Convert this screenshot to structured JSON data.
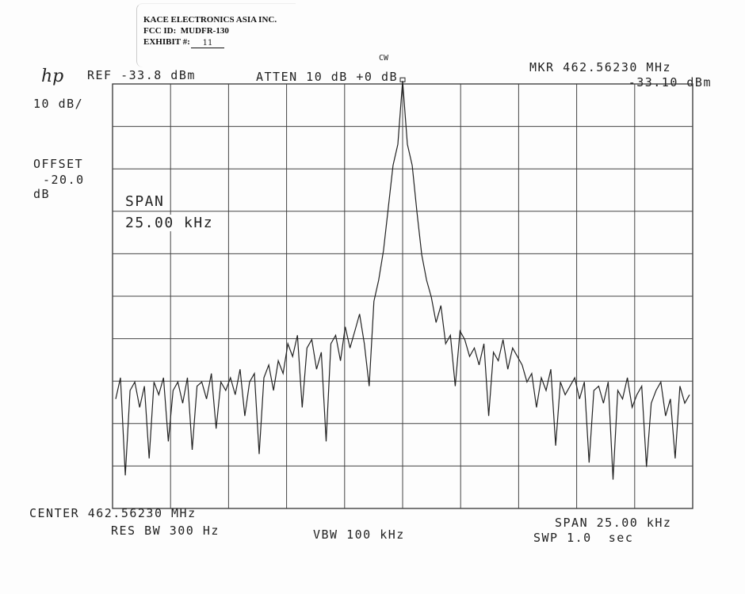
{
  "label": {
    "company": "KACE ELECTRONICS ASIA INC.",
    "fcc_id": "FCC ID:  MUDFR-130",
    "exhibit_label": "EXHIBIT #:",
    "exhibit_value": "11"
  },
  "logo": "hp",
  "header": {
    "cw": "CW",
    "ref": "REF -33.8 dBm",
    "atten": "ATTEN 10 dB +0 dB",
    "mkr_freq": "MKR 462.56230 MHz",
    "mkr_level": "-33.10 dBm",
    "scale": "10 dB/",
    "offset_label": "OFFSET",
    "offset_value": "-20.0",
    "offset_unit": "dB",
    "span_label": "SPAN",
    "span_value": "25.00 kHz"
  },
  "footer": {
    "center": "CENTER 462.56230 MHz",
    "res_bw": "RES BW 300 Hz",
    "vbw": "VBW 100 kHz",
    "span": "SPAN 25.00 kHz",
    "sweep": "SWP 1.0  sec"
  },
  "chart_data": {
    "type": "line",
    "title": "",
    "xlabel": "",
    "ylabel": "",
    "x_unit": "MHz",
    "xlim": [
      462.5498,
      462.5748
    ],
    "ylim": [
      -133.8,
      -33.8
    ],
    "grid": true,
    "x_divisions": 10,
    "y_divisions": 10,
    "color": "#222222",
    "values": [
      -108,
      -103,
      -126,
      -106,
      -104,
      -110,
      -105,
      -122,
      -104,
      -107,
      -103,
      -118,
      -106,
      -104,
      -109,
      -103,
      -120,
      -105,
      -104,
      -108,
      -102,
      -115,
      -104,
      -106,
      -103,
      -107,
      -101,
      -112,
      -104,
      -102,
      -121,
      -103,
      -100,
      -106,
      -99,
      -102,
      -95,
      -98,
      -93,
      -110,
      -96,
      -94,
      -101,
      -97,
      -118,
      -95,
      -93,
      -99,
      -91,
      -96,
      -92,
      -88,
      -95,
      -105,
      -85,
      -80,
      -73,
      -63,
      -53,
      -48,
      -33.1,
      -48,
      -53,
      -64,
      -74,
      -80,
      -84,
      -90,
      -86,
      -95,
      -93,
      -105,
      -92,
      -94,
      -98,
      -96,
      -100,
      -95,
      -112,
      -97,
      -99,
      -94,
      -101,
      -96,
      -98,
      -100,
      -104,
      -102,
      -110,
      -103,
      -106,
      -101,
      -119,
      -104,
      -107,
      -105,
      -103,
      -108,
      -104,
      -123,
      -106,
      -105,
      -109,
      -104,
      -127,
      -106,
      -108,
      -103,
      -110,
      -107,
      -105,
      -124,
      -109,
      -106,
      -104,
      -112,
      -108,
      -122,
      -105,
      -109,
      -107
    ]
  }
}
